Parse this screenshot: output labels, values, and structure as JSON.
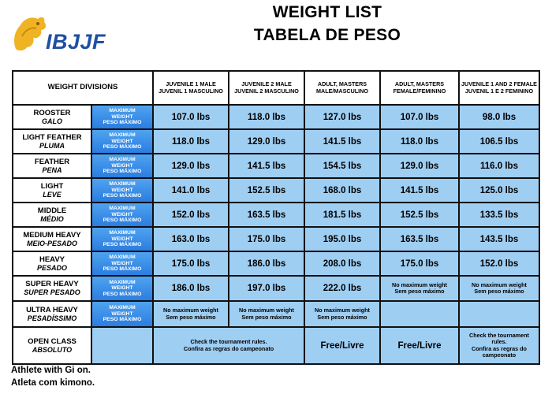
{
  "logo": {
    "text": "IBJJF",
    "icon": "lion-icon",
    "color": "#1f4fa3"
  },
  "title": {
    "line1": "WEIGHT LIST",
    "line2": "TABELA DE PESO"
  },
  "colors": {
    "value_cell": "#9fcef3",
    "label_cell": "#2b7de0",
    "border": "#111111"
  },
  "headers": {
    "divisions": "WEIGHT DIVISIONS",
    "columns": [
      [
        "JUVENILE 1 MALE",
        "JUVENIL 1 MASCULINO"
      ],
      [
        "JUVENILE 2 MALE",
        "JUVENIL 2 MASCULINO"
      ],
      [
        "ADULT, MASTERS",
        "MALE/MASCULINO"
      ],
      [
        "ADULT, MASTERS",
        "FEMALE/FEMININO"
      ],
      [
        "JUVENILE 1 AND 2 FEMALE",
        "JUVENIL 1 E 2 FEMININO"
      ]
    ]
  },
  "max_label": [
    "MAXIMUM",
    "WEIGHT",
    "PESO MÁXIMO"
  ],
  "rows": [
    {
      "en": "ROOSTER",
      "pt": "GALO",
      "values": [
        "107.0 lbs",
        "118.0 lbs",
        "127.0 lbs",
        "107.0 lbs",
        "98.0 lbs"
      ]
    },
    {
      "en": "LIGHT FEATHER",
      "pt": "PLUMA",
      "values": [
        "118.0 lbs",
        "129.0 lbs",
        "141.5 lbs",
        "118.0 lbs",
        "106.5 lbs"
      ]
    },
    {
      "en": "FEATHER",
      "pt": "PENA",
      "values": [
        "129.0 lbs",
        "141.5 lbs",
        "154.5 lbs",
        "129.0 lbs",
        "116.0 lbs"
      ]
    },
    {
      "en": "LIGHT",
      "pt": "LEVE",
      "values": [
        "141.0 lbs",
        "152.5 lbs",
        "168.0 lbs",
        "141.5 lbs",
        "125.0 lbs"
      ]
    },
    {
      "en": "MIDDLE",
      "pt": "MÉDIO",
      "values": [
        "152.0 lbs",
        "163.5 lbs",
        "181.5 lbs",
        "152.5 lbs",
        "133.5 lbs"
      ]
    },
    {
      "en": "MEDIUM HEAVY",
      "pt": "MEIO-PESADO",
      "values": [
        "163.0 lbs",
        "175.0 lbs",
        "195.0 lbs",
        "163.5 lbs",
        "143.5 lbs"
      ]
    },
    {
      "en": "HEAVY",
      "pt": "PESADO",
      "values": [
        "175.0 lbs",
        "186.0 lbs",
        "208.0 lbs",
        "175.0 lbs",
        "152.0 lbs"
      ]
    },
    {
      "en": "SUPER HEAVY",
      "pt": "SUPER PESADO",
      "values": [
        "186.0 lbs",
        "197.0 lbs",
        "222.0 lbs"
      ],
      "no_max": [
        "No maximum weight",
        "Sem peso máximo"
      ]
    },
    {
      "en": "ULTRA HEAVY",
      "pt": "PESADÍSSIMO",
      "no_max": [
        "No maximum weight",
        "Sem peso máximo"
      ]
    },
    {
      "en": "OPEN CLASS",
      "pt": "ABSOLUTO",
      "check": [
        "Check the tournament rules.",
        "Confira as regras do campeonato"
      ],
      "free": "Free/Livre",
      "check_female": [
        "Check the tournament",
        "rules.",
        "Confira as regras do",
        "campeonato"
      ]
    }
  ],
  "notes": [
    "Athlete with Gi on.",
    "Atleta com kimono."
  ]
}
